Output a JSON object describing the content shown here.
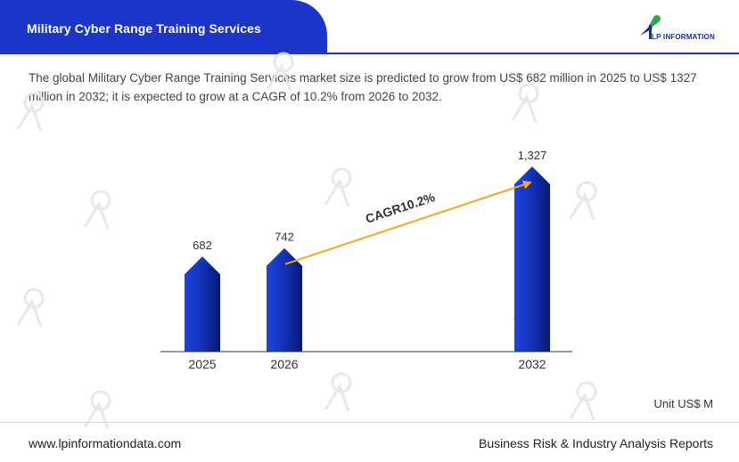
{
  "header": {
    "title": "Military Cyber Range Training Services",
    "logo_text": "LP INFORMATION"
  },
  "description": "The global Military Cyber Range Training Services market size is predicted to grow from US$ 682 million in 2025 to US$ 1327 million in 2032; it is expected to grow at a CAGR of 10.2% from 2026 to 2032.",
  "chart_data": {
    "type": "bar",
    "title": "",
    "xlabel": "",
    "ylabel": "",
    "categories": [
      "2025",
      "2026",
      "2032"
    ],
    "values": [
      682,
      742,
      1327
    ],
    "value_labels": [
      "682",
      "742",
      "1,327"
    ],
    "ylim": [
      0,
      1400
    ],
    "annotation": {
      "text": "CAGR10.2%",
      "from": "2026",
      "to": "2032"
    },
    "unit": "Unit US$ M"
  },
  "colors": {
    "brand": "#1b35c8",
    "bar_light": "#1a3fd6",
    "bar_dark": "#0a1a78",
    "arrow": "#f5a623"
  },
  "footer": {
    "website": "www.lpinformationdata.com",
    "tagline": "Business Risk & Industry Analysis Reports"
  }
}
